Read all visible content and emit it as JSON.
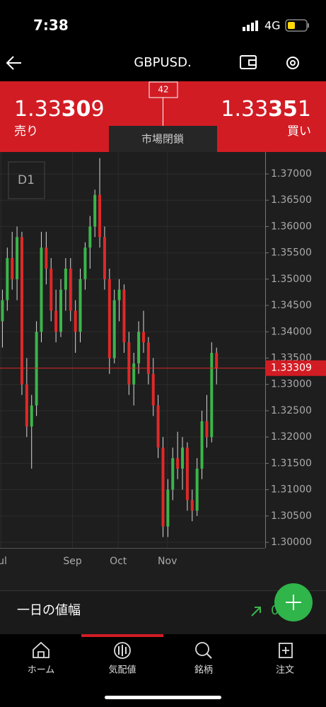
{
  "status_bar": {
    "time": "7:38",
    "network": "4G"
  },
  "header": {
    "title": "GBPUSD."
  },
  "quote": {
    "spread": "42",
    "bid": {
      "prefix": "1.33",
      "big": "30",
      "suffix": "9",
      "label": "売り"
    },
    "ask": {
      "prefix": "1.33",
      "big": "35",
      "suffix": "1",
      "label": "買い"
    },
    "market_status": "市場閉鎖"
  },
  "chart_data": {
    "type": "candlestick",
    "timeframe": "D1",
    "up_color": "#3bb54a",
    "down_color": "#e02828",
    "wick_color": "#d8d8d8",
    "xlim": [
      -0.5,
      54
    ],
    "xticks": [
      {
        "value": -0.3,
        "label": "Jul"
      },
      {
        "value": 14.4,
        "label": "Sep"
      },
      {
        "value": 23.8,
        "label": "Oct"
      },
      {
        "value": 33.9,
        "label": "Nov"
      }
    ],
    "ylim": [
      1.29893,
      1.37322
    ],
    "yticks": [
      {
        "value": 1.3,
        "label": "1.30000"
      },
      {
        "value": 1.305,
        "label": "1.30500"
      },
      {
        "value": 1.31,
        "label": "1.31000"
      },
      {
        "value": 1.315,
        "label": "1.31500"
      },
      {
        "value": 1.32,
        "label": "1.32000"
      },
      {
        "value": 1.325,
        "label": "1.32500"
      },
      {
        "value": 1.33,
        "label": "1.33000"
      },
      {
        "value": 1.335,
        "label": "1.33500"
      },
      {
        "value": 1.34,
        "label": "1.34000"
      },
      {
        "value": 1.345,
        "label": "1.34500"
      },
      {
        "value": 1.35,
        "label": "1.35000"
      },
      {
        "value": 1.355,
        "label": "1.35500"
      },
      {
        "value": 1.36,
        "label": "1.36000"
      },
      {
        "value": 1.365,
        "label": "1.36500"
      },
      {
        "value": 1.37,
        "label": "1.37000"
      }
    ],
    "grid": true,
    "current_price": 1.33309,
    "open": [
      1.342,
      1.346,
      1.354,
      1.35,
      1.358,
      1.33,
      1.322,
      1.326,
      1.34,
      1.356,
      1.352,
      1.344,
      1.34,
      1.348,
      1.352,
      1.344,
      1.34,
      1.35,
      1.356,
      1.36,
      1.366,
      1.358,
      1.35,
      1.335,
      1.346,
      1.348,
      1.338,
      1.33,
      1.334,
      1.34,
      1.338,
      1.332,
      1.326,
      1.318,
      1.303,
      1.31,
      1.316,
      1.314,
      1.318,
      1.308,
      1.306,
      1.314,
      1.323,
      1.32,
      1.336
    ],
    "high": [
      1.348,
      1.356,
      1.359,
      1.36,
      1.359,
      1.335,
      1.328,
      1.342,
      1.359,
      1.359,
      1.354,
      1.348,
      1.35,
      1.354,
      1.354,
      1.346,
      1.352,
      1.357,
      1.362,
      1.367,
      1.373,
      1.36,
      1.352,
      1.348,
      1.35,
      1.349,
      1.34,
      1.336,
      1.342,
      1.344,
      1.339,
      1.335,
      1.328,
      1.32,
      1.312,
      1.318,
      1.321,
      1.32,
      1.319,
      1.31,
      1.316,
      1.325,
      1.328,
      1.338,
      1.337
    ],
    "low": [
      1.337,
      1.344,
      1.348,
      1.346,
      1.328,
      1.32,
      1.314,
      1.324,
      1.338,
      1.349,
      1.342,
      1.338,
      1.339,
      1.344,
      1.342,
      1.336,
      1.338,
      1.348,
      1.352,
      1.358,
      1.356,
      1.348,
      1.332,
      1.334,
      1.342,
      1.336,
      1.328,
      1.326,
      1.332,
      1.336,
      1.33,
      1.324,
      1.316,
      1.301,
      1.301,
      1.308,
      1.312,
      1.31,
      1.306,
      1.304,
      1.305,
      1.312,
      1.318,
      1.319,
      1.33
    ],
    "close": [
      1.346,
      1.354,
      1.35,
      1.358,
      1.33,
      1.322,
      1.326,
      1.34,
      1.356,
      1.352,
      1.344,
      1.34,
      1.348,
      1.352,
      1.344,
      1.34,
      1.35,
      1.356,
      1.36,
      1.366,
      1.358,
      1.35,
      1.335,
      1.346,
      1.348,
      1.338,
      1.33,
      1.334,
      1.34,
      1.338,
      1.332,
      1.326,
      1.318,
      1.303,
      1.31,
      1.316,
      1.314,
      1.318,
      1.308,
      1.306,
      1.314,
      1.323,
      1.32,
      1.336,
      1.33309
    ]
  },
  "daily_range": {
    "label": "一日の値幅",
    "value": "0"
  },
  "tabs": [
    "ホーム",
    "気配値",
    "銘柄",
    "注文"
  ]
}
